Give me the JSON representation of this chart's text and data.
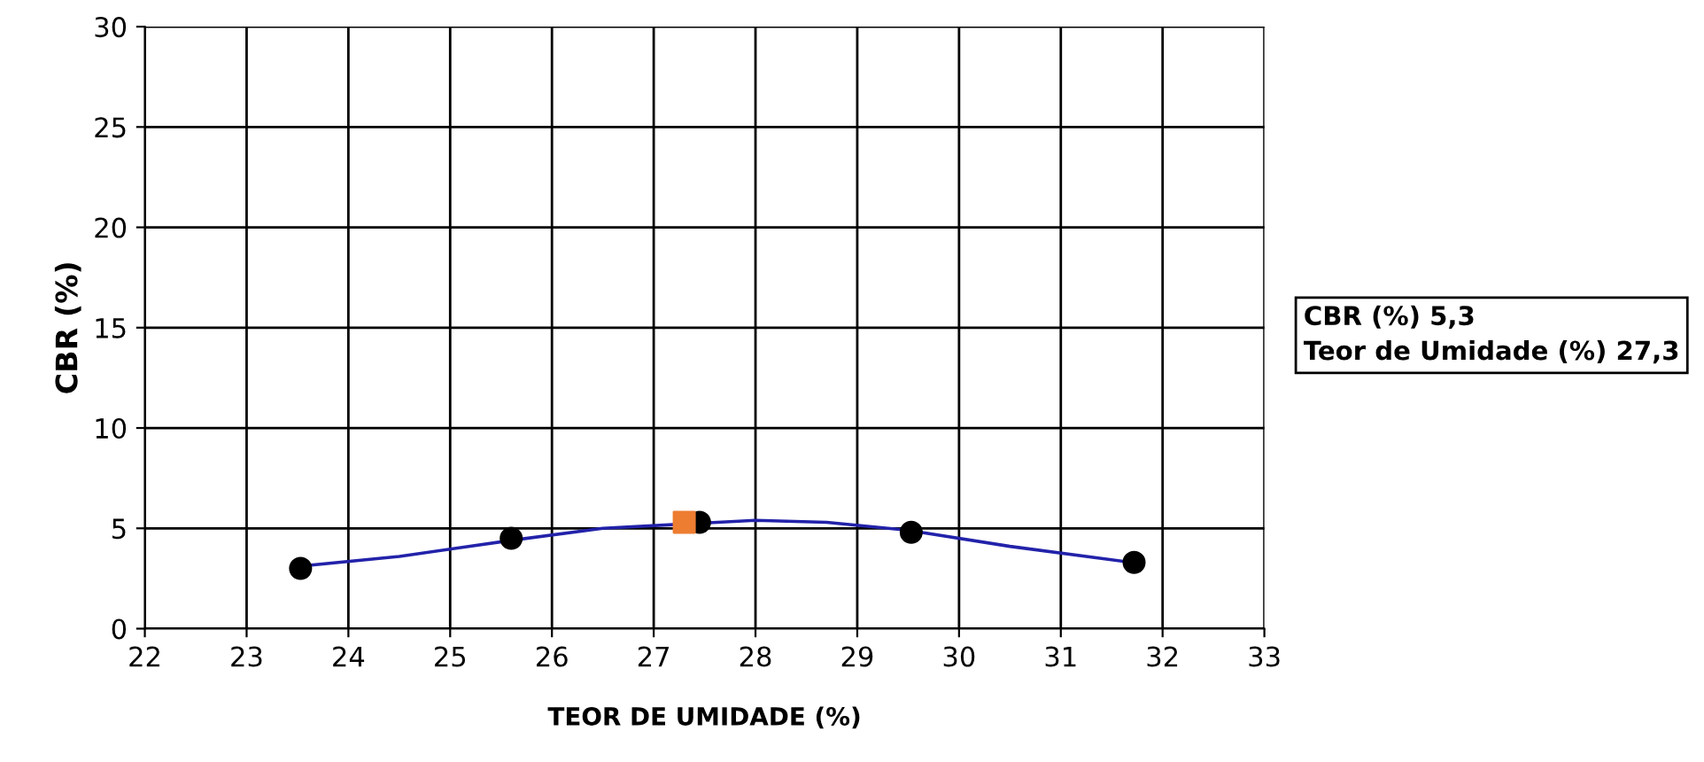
{
  "chart_data": {
    "type": "scatter",
    "xlabel": "TEOR DE UMIDADE (%)",
    "ylabel": "CBR (%)",
    "xlim": [
      22,
      33
    ],
    "xticks": [
      22,
      23,
      24,
      25,
      26,
      27,
      28,
      29,
      30,
      31,
      32,
      33
    ],
    "ylim": [
      0,
      30
    ],
    "yticks": [
      0,
      5,
      10,
      15,
      20,
      25,
      30
    ],
    "grid": true,
    "legend": false,
    "series": [
      {
        "type": "line",
        "color": "#2222aa",
        "marker": "none",
        "x": [
          23.5,
          24.5,
          25.6,
          26.5,
          28.0,
          28.7,
          29.5,
          30.5,
          31.7
        ],
        "values": [
          3.1,
          3.6,
          4.4,
          5.0,
          5.4,
          5.3,
          4.9,
          4.1,
          3.3
        ]
      },
      {
        "color": "#000000",
        "marker": "circle",
        "x": [
          23.53,
          25.6,
          27.45,
          29.53,
          31.72
        ],
        "values": [
          3.0,
          4.5,
          5.3,
          4.8,
          3.3
        ]
      },
      {
        "color": "#ed7d31",
        "marker": "square",
        "x": [
          27.3
        ],
        "values": [
          5.3
        ]
      }
    ],
    "annotations": [
      "CBR (%) 5,3",
      "Teor de Umidade (%) 27,3"
    ]
  }
}
